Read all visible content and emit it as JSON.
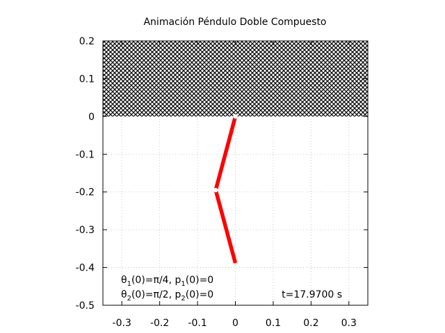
{
  "chart_data": {
    "type": "line",
    "title": "Animación Péndulo Doble Compuesto",
    "xlim": [
      -0.35,
      0.35
    ],
    "ylim": [
      -0.5,
      0.2
    ],
    "xticks": [
      -0.3,
      -0.2,
      -0.1,
      0,
      0.1,
      0.2,
      0.3
    ],
    "xtick_labels": [
      "-0.3",
      "-0.2",
      "-0.1",
      "0",
      "0.1",
      "0.2",
      "0.3"
    ],
    "yticks": [
      0.2,
      0.1,
      0,
      -0.1,
      -0.2,
      -0.3,
      -0.4,
      -0.5
    ],
    "ytick_labels": [
      "0.2",
      "0.1",
      "0",
      "-0.1",
      "-0.2",
      "-0.3",
      "-0.4",
      "-0.5"
    ],
    "grid": true,
    "ceiling": {
      "y_from": 0,
      "y_to": 0.2,
      "fill": "crosshatch"
    },
    "pendulum": {
      "pivot": [
        0,
        0
      ],
      "joint": [
        -0.052,
        -0.195
      ],
      "tip": [
        0,
        -0.388
      ],
      "color": "#ff0000"
    },
    "annotations": {
      "line1": {
        "a": "θ",
        "a_sub": "1",
        "b": "(0)=π/4, p",
        "b_sub": "1",
        "c": "(0)=0"
      },
      "line2": {
        "a": "θ",
        "a_sub": "2",
        "b": "(0)=π/2, p",
        "b_sub": "2",
        "c": "(0)=0"
      },
      "time": "t=17.9700 s"
    }
  }
}
